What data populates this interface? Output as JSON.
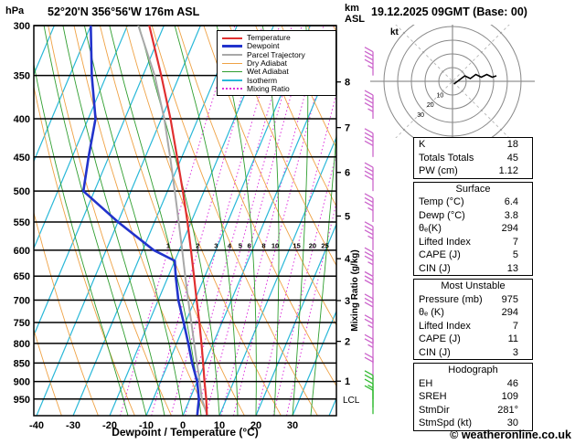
{
  "header": {
    "station": "52°20'N 356°56'W 176m ASL",
    "datetime": "19.12.2025 09GMT (Base: 00)",
    "pressure_unit": "hPa",
    "altitude_unit_km": "km",
    "altitude_unit_asl": "ASL"
  },
  "axes": {
    "xlabel": "Dewpoint / Temperature (°C)",
    "x_ticks": [
      -40,
      -30,
      -20,
      -10,
      0,
      10,
      20,
      30
    ],
    "pressure_ticks": [
      300,
      350,
      400,
      450,
      500,
      550,
      600,
      650,
      700,
      750,
      800,
      850,
      900,
      950
    ],
    "km_ticks": [
      {
        "km": 1,
        "hpa": 899
      },
      {
        "km": 2,
        "hpa": 795
      },
      {
        "km": 3,
        "hpa": 701
      },
      {
        "km": 4,
        "hpa": 616
      },
      {
        "km": 5,
        "hpa": 540
      },
      {
        "km": 6,
        "hpa": 472
      },
      {
        "km": 7,
        "hpa": 411
      },
      {
        "km": 8,
        "hpa": 357
      }
    ],
    "mixing_ratio_label": "Mixing Ratio (g/kg)",
    "mixing_ratio_values": [
      1,
      2,
      3,
      4,
      5,
      6,
      8,
      10,
      15,
      20,
      25
    ],
    "lcl_label": "LCL"
  },
  "colors": {
    "temperature": "#e03030",
    "dewpoint": "#2233cc",
    "parcel": "#a8a8a8",
    "dry_adiabat": "#efa245",
    "wet_adiabat": "#2f9e2f",
    "isotherm": "#29b8d8",
    "mixing_ratio": "#dd33dd",
    "barb": "#cc66cc",
    "barb_surface": "#33bb33",
    "grid": "#000000"
  },
  "legend": {
    "items": [
      {
        "label": "Temperature",
        "color": "#e03030",
        "style": "solid",
        "width": 2
      },
      {
        "label": "Dewpoint",
        "color": "#2233cc",
        "style": "solid",
        "width": 3
      },
      {
        "label": "Parcel Trajectory",
        "color": "#a8a8a8",
        "style": "solid",
        "width": 2
      },
      {
        "label": "Dry Adiabat",
        "color": "#efa245",
        "style": "solid",
        "width": 1
      },
      {
        "label": "Wet Adiabat",
        "color": "#2f9e2f",
        "style": "solid",
        "width": 1
      },
      {
        "label": "Isotherm",
        "color": "#29b8d8",
        "style": "solid",
        "width": 2
      },
      {
        "label": "Mixing Ratio",
        "color": "#dd33dd",
        "style": "dotted",
        "width": 2
      }
    ]
  },
  "chart_data": {
    "type": "skewt_log_p",
    "pressure_range_hpa": [
      300,
      1000
    ],
    "temp_axis_range_c": [
      -40,
      35
    ],
    "series": [
      {
        "name": "Parcel Trajectory",
        "color": "#a8a8a8",
        "width": 2,
        "points": [
          [
            995,
            6.4
          ],
          [
            950,
            3.3
          ],
          [
            900,
            0.7
          ],
          [
            850,
            -2.2
          ],
          [
            800,
            -5.2
          ],
          [
            750,
            -8.4
          ],
          [
            700,
            -11.8
          ],
          [
            650,
            -15.4
          ],
          [
            600,
            -19.2
          ],
          [
            550,
            -23.4
          ],
          [
            500,
            -28.0
          ],
          [
            450,
            -33.2
          ],
          [
            400,
            -39.2
          ],
          [
            350,
            -46.8
          ],
          [
            300,
            -57.0
          ]
        ]
      },
      {
        "name": "Dewpoint",
        "color": "#2233cc",
        "width": 2.6,
        "points": [
          [
            995,
            3.8
          ],
          [
            950,
            2.5
          ],
          [
            900,
            0.0
          ],
          [
            850,
            -3.5
          ],
          [
            800,
            -6.8
          ],
          [
            750,
            -10.5
          ],
          [
            700,
            -14.5
          ],
          [
            650,
            -18.0
          ],
          [
            620,
            -20.0
          ],
          [
            600,
            -27.0
          ],
          [
            550,
            -40.0
          ],
          [
            500,
            -53.0
          ],
          [
            450,
            -55.5
          ],
          [
            400,
            -58.0
          ],
          [
            350,
            -64.0
          ],
          [
            300,
            -70.0
          ]
        ]
      },
      {
        "name": "Temperature",
        "color": "#e03030",
        "width": 2.2,
        "points": [
          [
            995,
            6.4
          ],
          [
            950,
            4.5
          ],
          [
            900,
            2.0
          ],
          [
            850,
            -0.5
          ],
          [
            800,
            -3.2
          ],
          [
            750,
            -6.2
          ],
          [
            700,
            -9.5
          ],
          [
            650,
            -13.0
          ],
          [
            600,
            -16.8
          ],
          [
            550,
            -21.0
          ],
          [
            500,
            -25.8
          ],
          [
            450,
            -31.3
          ],
          [
            400,
            -37.5
          ],
          [
            350,
            -45.0
          ],
          [
            300,
            -54.0
          ]
        ]
      }
    ],
    "wind_barbs": [
      {
        "p": 350,
        "kt": 45
      },
      {
        "p": 400,
        "kt": 45
      },
      {
        "p": 450,
        "kt": 40
      },
      {
        "p": 500,
        "kt": 40
      },
      {
        "p": 550,
        "kt": 35
      },
      {
        "p": 600,
        "kt": 35
      },
      {
        "p": 650,
        "kt": 35
      },
      {
        "p": 700,
        "kt": 30
      },
      {
        "p": 750,
        "kt": 30
      },
      {
        "p": 800,
        "kt": 25
      },
      {
        "p": 850,
        "kt": 25
      },
      {
        "p": 900,
        "kt": 20
      },
      {
        "p": 950,
        "kt": 20
      },
      {
        "p": 975,
        "kt": 15
      },
      {
        "p": 995,
        "kt": 10
      }
    ],
    "background": {
      "isotherms_c": {
        "min": -90,
        "max": 40,
        "step": 10
      },
      "dry_adiabats_k": {
        "min": 230,
        "max": 440,
        "step": 10
      },
      "wet_adiabats_c": {
        "min": -15,
        "max": 35,
        "step": 5
      },
      "mixing_ratio_gkg": [
        1,
        2,
        3,
        4,
        5,
        6,
        8,
        10,
        15,
        20,
        25
      ]
    }
  },
  "hodograph": {
    "kt_label": "kt",
    "rings_kt": [
      10,
      20,
      30,
      40,
      50
    ],
    "ring_labels": [
      10,
      20,
      30
    ],
    "trace_uv_kt": [
      [
        1,
        -2
      ],
      [
        5,
        1
      ],
      [
        9,
        4
      ],
      [
        13,
        2
      ],
      [
        17,
        5
      ],
      [
        21,
        3
      ],
      [
        25,
        5
      ],
      [
        29,
        3
      ],
      [
        32,
        4
      ]
    ]
  },
  "stats": {
    "top": [
      [
        "K",
        "18"
      ],
      [
        "Totals Totals",
        "45"
      ],
      [
        "PW (cm)",
        "1.12"
      ]
    ],
    "sections": [
      {
        "title": "Surface",
        "rows": [
          [
            "Temp (°C)",
            "6.4"
          ],
          [
            "Dewp (°C)",
            "3.8"
          ],
          [
            "θₑ(K)",
            "294"
          ],
          [
            "Lifted Index",
            "7"
          ],
          [
            "CAPE (J)",
            "5"
          ],
          [
            "CIN (J)",
            "13"
          ]
        ]
      },
      {
        "title": "Most Unstable",
        "rows": [
          [
            "Pressure (mb)",
            "975"
          ],
          [
            "θₑ (K)",
            "294"
          ],
          [
            "Lifted Index",
            "7"
          ],
          [
            "CAPE (J)",
            "11"
          ],
          [
            "CIN (J)",
            "3"
          ]
        ]
      },
      {
        "title": "Hodograph",
        "rows": [
          [
            "EH",
            "46"
          ],
          [
            "SREH",
            "109"
          ],
          [
            "StmDir",
            "281°"
          ],
          [
            "StmSpd (kt)",
            "30"
          ]
        ]
      }
    ]
  },
  "footer": {
    "copyright": "© weatheronline.co.uk"
  }
}
